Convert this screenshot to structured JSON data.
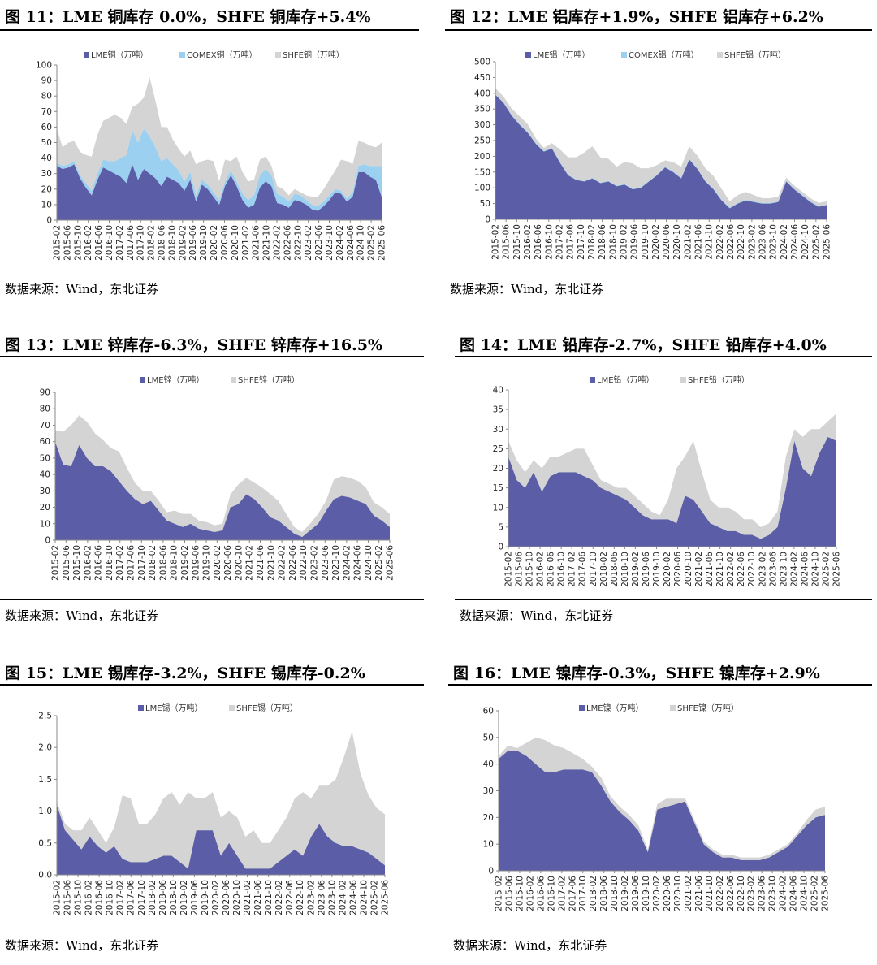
{
  "source_text": "数据来源：Wind，东北证券",
  "colors": {
    "lme": "#5b5ea6",
    "comex": "#9bd0f0",
    "shfe": "#d4d4d4"
  },
  "chart_data": [
    {
      "id": "fig11",
      "title": "图 11：LME 铜库存 0.0%，SHFE 铜库存+5.4%",
      "type": "area",
      "legend_position": "top",
      "legend": [
        "LME铜（万吨）",
        "COMEX铜（万吨）",
        "SHFE铜（万吨）"
      ],
      "x_ticks": [
        "2015-02",
        "2015-06",
        "2015-10",
        "2016-02",
        "2016-06",
        "2016-10",
        "2017-02",
        "2017-06",
        "2017-10",
        "2018-02",
        "2018-06",
        "2018-10",
        "2019-02",
        "2019-06",
        "2019-10",
        "2020-02",
        "2020-06",
        "2020-10",
        "2021-02",
        "2021-06",
        "2021-10",
        "2022-02",
        "2022-06",
        "2022-10",
        "2023-02",
        "2023-06",
        "2023-10",
        "2024-02",
        "2024-06",
        "2024-10",
        "2025-02",
        "2025-06"
      ],
      "ylim": [
        0,
        100
      ],
      "y_ticks": [
        0,
        10,
        20,
        30,
        40,
        50,
        60,
        70,
        80,
        90,
        100
      ],
      "series": [
        {
          "name": "LME铜（万吨）",
          "values": [
            35,
            33,
            34,
            36,
            27,
            21,
            16,
            26,
            34,
            32,
            30,
            28,
            24,
            36,
            26,
            33,
            30,
            27,
            22,
            28,
            26,
            24,
            19,
            26,
            12,
            23,
            20,
            15,
            10,
            22,
            29,
            22,
            13,
            8,
            10,
            21,
            25,
            22,
            11,
            10,
            8,
            13,
            12,
            10,
            7,
            6,
            9,
            13,
            18,
            17,
            12,
            15,
            31,
            31,
            28,
            26,
            15
          ]
        },
        {
          "name": "COMEX铜（万吨）",
          "values": [
            2,
            2,
            2,
            2,
            2,
            3,
            3,
            4,
            5,
            6,
            8,
            12,
            18,
            22,
            24,
            26,
            24,
            20,
            16,
            12,
            10,
            8,
            6,
            5,
            4,
            3,
            3,
            3,
            3,
            3,
            3,
            3,
            4,
            5,
            6,
            8,
            8,
            7,
            6,
            5,
            4,
            4,
            4,
            3,
            3,
            3,
            3,
            3,
            2,
            2,
            2,
            3,
            4,
            5,
            7,
            9,
            20
          ]
        },
        {
          "name": "SHFE铜（万吨）",
          "values": [
            22,
            12,
            14,
            13,
            15,
            18,
            22,
            25,
            25,
            28,
            30,
            26,
            20,
            15,
            25,
            20,
            38,
            30,
            22,
            20,
            16,
            14,
            16,
            14,
            20,
            12,
            16,
            20,
            12,
            14,
            6,
            16,
            14,
            12,
            10,
            10,
            8,
            6,
            5,
            5,
            4,
            3,
            2,
            3,
            5,
            6,
            8,
            10,
            12,
            20,
            24,
            18,
            16,
            14,
            13,
            12,
            15
          ]
        }
      ]
    },
    {
      "id": "fig12",
      "title": "图 12：LME 铝库存+1.9%，SHFE 铝库存+6.2%",
      "type": "area",
      "legend_position": "top",
      "legend": [
        "LME铝（万吨）",
        "COMEX铝（万吨）",
        "SHFE铝（万吨）"
      ],
      "x_ticks": [
        "2015-02",
        "2015-06",
        "2015-10",
        "2016-02",
        "2016-06",
        "2016-10",
        "2017-02",
        "2017-06",
        "2017-10",
        "2018-02",
        "2018-06",
        "2018-10",
        "2019-02",
        "2019-06",
        "2019-10",
        "2020-02",
        "2020-06",
        "2020-10",
        "2021-02",
        "2021-06",
        "2021-10",
        "2022-02",
        "2022-06",
        "2022-10",
        "2023-02",
        "2023-06",
        "2023-10",
        "2024-02",
        "2024-06",
        "2024-10",
        "2025-02",
        "2025-06"
      ],
      "ylim": [
        0,
        500
      ],
      "y_ticks": [
        0,
        50,
        100,
        150,
        200,
        250,
        300,
        350,
        400,
        450,
        500
      ],
      "series": [
        {
          "name": "LME铝（万吨）",
          "values": [
            395,
            370,
            330,
            300,
            275,
            240,
            215,
            225,
            180,
            140,
            125,
            120,
            130,
            115,
            120,
            105,
            110,
            95,
            100,
            120,
            140,
            165,
            150,
            130,
            190,
            160,
            120,
            95,
            60,
            35,
            50,
            60,
            55,
            50,
            50,
            55,
            120,
            95,
            75,
            55,
            40,
            45
          ]
        },
        {
          "name": "COMEX铝（万吨）",
          "values": [
            2,
            2,
            2,
            2,
            2,
            2,
            2,
            2,
            2,
            2,
            2,
            2,
            2,
            2,
            2,
            2,
            2,
            2,
            2,
            2,
            2,
            2,
            2,
            2,
            2,
            2,
            2,
            2,
            2,
            2,
            2,
            2,
            2,
            2,
            2,
            2,
            2,
            2,
            2,
            2,
            2,
            2
          ]
        },
        {
          "name": "SHFE铝（万吨）",
          "values": [
            20,
            18,
            20,
            25,
            25,
            15,
            10,
            15,
            40,
            55,
            70,
            90,
            100,
            80,
            70,
            60,
            70,
            80,
            60,
            40,
            30,
            20,
            30,
            35,
            40,
            40,
            40,
            40,
            35,
            20,
            25,
            25,
            20,
            15,
            15,
            15,
            10,
            10,
            10,
            10,
            10,
            10
          ]
        }
      ]
    },
    {
      "id": "fig13",
      "title": "图 13：LME 锌库存-6.3%，SHFE 锌库存+16.5%",
      "type": "area",
      "legend_position": "top",
      "legend": [
        "LME锌（万吨）",
        "SHFE锌（万吨）"
      ],
      "x_ticks": [
        "2015-02",
        "2015-06",
        "2015-10",
        "2016-02",
        "2016-06",
        "2016-10",
        "2017-02",
        "2017-06",
        "2017-10",
        "2018-02",
        "2018-06",
        "2018-10",
        "2019-02",
        "2019-06",
        "2019-10",
        "2020-02",
        "2020-06",
        "2020-10",
        "2021-02",
        "2021-06",
        "2021-10",
        "2022-02",
        "2022-06",
        "2022-10",
        "2023-02",
        "2023-06",
        "2023-10",
        "2024-02",
        "2024-06",
        "2024-10",
        "2025-02",
        "2025-06"
      ],
      "ylim": [
        0,
        90
      ],
      "y_ticks": [
        0,
        10,
        20,
        30,
        40,
        50,
        60,
        70,
        80,
        90
      ],
      "series": [
        {
          "name": "LME锌（万吨）",
          "values": [
            60,
            46,
            45,
            58,
            50,
            45,
            45,
            42,
            36,
            30,
            25,
            22,
            24,
            18,
            12,
            10,
            8,
            10,
            7,
            6,
            5,
            6,
            20,
            22,
            28,
            25,
            20,
            14,
            12,
            8,
            4,
            2,
            6,
            10,
            18,
            25,
            27,
            26,
            24,
            22,
            15,
            12,
            8
          ]
        },
        {
          "name": "SHFE锌（万吨）",
          "values": [
            7,
            20,
            25,
            18,
            22,
            20,
            16,
            14,
            18,
            14,
            10,
            8,
            6,
            6,
            5,
            8,
            8,
            6,
            5,
            5,
            4,
            4,
            8,
            12,
            10,
            10,
            12,
            14,
            12,
            8,
            4,
            3,
            4,
            6,
            6,
            12,
            12,
            12,
            12,
            10,
            8,
            8,
            8
          ]
        }
      ]
    },
    {
      "id": "fig14",
      "title": "图 14：LME 铅库存-2.7%，SHFE 铅库存+4.0%",
      "type": "area",
      "legend_position": "top",
      "legend": [
        "LME铅（万吨）",
        "SHFE铅（万吨）"
      ],
      "x_ticks": [
        "2015-02",
        "2015-06",
        "2015-10",
        "2016-02",
        "2016-06",
        "2016-10",
        "2017-02",
        "2017-06",
        "2017-10",
        "2018-02",
        "2018-06",
        "2018-10",
        "2019-02",
        "2019-06",
        "2019-10",
        "2020-02",
        "2020-06",
        "2020-10",
        "2021-02",
        "2021-06",
        "2021-10",
        "2022-02",
        "2022-06",
        "2022-10",
        "2023-02",
        "2023-06",
        "2023-10",
        "2024-02",
        "2024-06",
        "2024-10",
        "2025-02",
        "2025-06"
      ],
      "ylim": [
        0,
        40
      ],
      "y_ticks": [
        0,
        5,
        10,
        15,
        20,
        25,
        30,
        35,
        40
      ],
      "series": [
        {
          "name": "LME铅（万吨）",
          "values": [
            23,
            17,
            15,
            19,
            14,
            18,
            19,
            19,
            19,
            18,
            17,
            15,
            14,
            13,
            12,
            10,
            8,
            7,
            7,
            7,
            6,
            13,
            12,
            9,
            6,
            5,
            4,
            4,
            3,
            3,
            2,
            3,
            5,
            15,
            27,
            20,
            18,
            24,
            28,
            27
          ]
        },
        {
          "name": "SHFE铅（万吨）",
          "values": [
            4,
            5,
            4,
            3,
            6,
            5,
            4,
            5,
            6,
            7,
            4,
            2,
            2,
            2,
            3,
            3,
            3,
            2,
            1,
            5,
            14,
            10,
            15,
            10,
            6,
            5,
            6,
            5,
            4,
            4,
            3,
            3,
            4,
            8,
            3,
            8,
            12,
            6,
            4,
            7
          ]
        }
      ]
    },
    {
      "id": "fig15",
      "title": "图 15：LME 锡库存-3.2%，SHFE 锡库存-0.2%",
      "type": "area",
      "legend_position": "top",
      "legend": [
        "LME锡（万吨）",
        "SHFE锡（万吨）"
      ],
      "x_ticks": [
        "2015-02",
        "2015-06",
        "2015-10",
        "2016-02",
        "2016-06",
        "2016-10",
        "2017-02",
        "2017-06",
        "2017-10",
        "2018-02",
        "2018-06",
        "2018-10",
        "2019-02",
        "2019-06",
        "2019-10",
        "2020-02",
        "2020-06",
        "2020-10",
        "2021-02",
        "2021-06",
        "2021-10",
        "2022-02",
        "2022-06",
        "2022-10",
        "2023-02",
        "2023-06",
        "2023-10",
        "2024-02",
        "2024-06",
        "2024-10",
        "2025-02",
        "2025-06"
      ],
      "ylim": [
        0,
        2.5
      ],
      "y_ticks": [
        0.0,
        0.5,
        1.0,
        1.5,
        2.0,
        2.5
      ],
      "series": [
        {
          "name": "LME锡（万吨）",
          "values": [
            1.1,
            0.7,
            0.55,
            0.4,
            0.6,
            0.45,
            0.35,
            0.45,
            0.25,
            0.2,
            0.2,
            0.2,
            0.25,
            0.3,
            0.3,
            0.2,
            0.1,
            0.7,
            0.7,
            0.7,
            0.3,
            0.5,
            0.3,
            0.1,
            0.1,
            0.1,
            0.1,
            0.2,
            0.3,
            0.4,
            0.3,
            0.6,
            0.8,
            0.6,
            0.5,
            0.45,
            0.45,
            0.4,
            0.35,
            0.25,
            0.15
          ]
        },
        {
          "name": "SHFE锡（万吨）",
          "values": [
            0.05,
            0.1,
            0.15,
            0.3,
            0.3,
            0.25,
            0.15,
            0.3,
            1.0,
            1.0,
            0.6,
            0.6,
            0.7,
            0.9,
            1.0,
            0.9,
            1.2,
            0.5,
            0.5,
            0.6,
            0.6,
            0.5,
            0.6,
            0.5,
            0.6,
            0.4,
            0.4,
            0.5,
            0.6,
            0.8,
            1.0,
            0.6,
            0.6,
            0.8,
            1.0,
            1.4,
            1.8,
            1.2,
            0.9,
            0.8,
            0.8
          ]
        }
      ]
    },
    {
      "id": "fig16",
      "title": "图 16：LME 镍库存-0.3%，SHFE 镍库存+2.9%",
      "type": "area",
      "legend_position": "top",
      "legend": [
        "LME镍（万吨）",
        "SHFE镍（万吨）"
      ],
      "x_ticks": [
        "2015-02",
        "2015-06",
        "2015-10",
        "2016-02",
        "2016-06",
        "2016-10",
        "2017-02",
        "2017-06",
        "2017-10",
        "2018-02",
        "2018-06",
        "2018-10",
        "2019-02",
        "2019-06",
        "2019-10",
        "2020-02",
        "2020-06",
        "2020-10",
        "2021-02",
        "2021-06",
        "2021-10",
        "2022-02",
        "2022-06",
        "2022-10",
        "2023-02",
        "2023-06",
        "2023-10",
        "2024-02",
        "2024-06",
        "2024-10",
        "2025-02",
        "2025-06"
      ],
      "ylim": [
        0,
        60
      ],
      "y_ticks": [
        0,
        10,
        20,
        30,
        40,
        50,
        60
      ],
      "series": [
        {
          "name": "LME镍（万吨）",
          "values": [
            42,
            45,
            45,
            43,
            40,
            37,
            37,
            38,
            38,
            38,
            37,
            32,
            26,
            22,
            19,
            15,
            7,
            23,
            24,
            25,
            26,
            18,
            10,
            7,
            5,
            5,
            4,
            4,
            4,
            5,
            7,
            9,
            13,
            17,
            20,
            21
          ]
        },
        {
          "name": "SHFE镍（万吨）",
          "values": [
            1,
            2,
            1,
            5,
            10,
            12,
            10,
            8,
            6,
            4,
            2,
            3,
            2,
            2,
            2,
            2,
            1,
            2,
            3,
            2,
            1,
            1,
            1,
            1,
            1,
            1,
            1,
            1,
            1,
            1,
            1,
            1,
            1,
            2,
            3,
            3
          ]
        }
      ]
    }
  ]
}
